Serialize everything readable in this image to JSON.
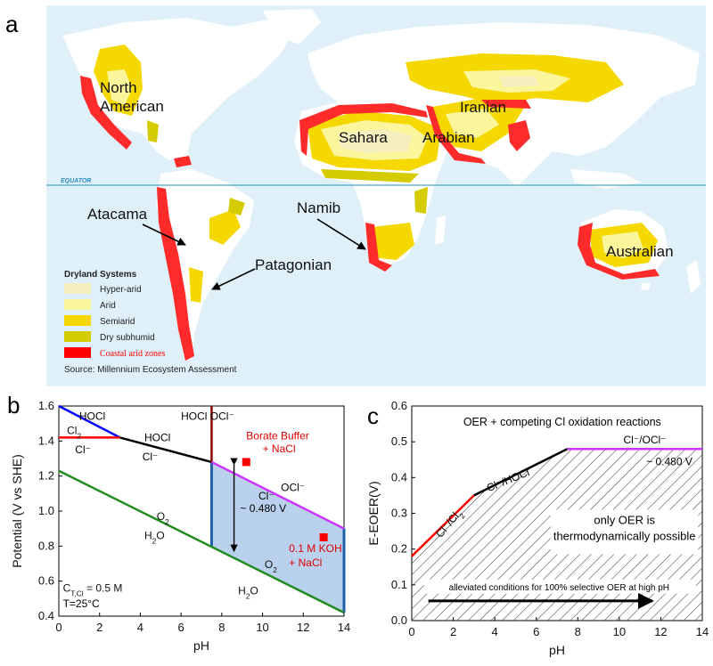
{
  "panel_labels": {
    "a": "a",
    "b": "b",
    "c": "c"
  },
  "map": {
    "equator_label": "EQUATOR",
    "regions": [
      "North American",
      "Sahara",
      "Arabian",
      "Iranian",
      "Atacama",
      "Namib",
      "Patagonian",
      "Australian"
    ],
    "legend": {
      "title": "Dryland Systems",
      "items": [
        {
          "label": "Hyper-arid",
          "color": "#f5efc0"
        },
        {
          "label": "Arid",
          "color": "#fbf59c"
        },
        {
          "label": "Semiarid",
          "color": "#f4d800"
        },
        {
          "label": "Dry subhumid",
          "color": "#d4cc00"
        },
        {
          "label": "Coastal arid zones",
          "color": "#ff0000"
        }
      ],
      "source": "Source: Millennium Ecosystem Assessment"
    },
    "colors": {
      "ocean": "#dff0f8",
      "land": "#ffffff",
      "coastal": "#ff2a2a"
    }
  },
  "chart_data": [
    {
      "type": "line",
      "xlabel": "pH",
      "ylabel": "Potential (V vs SHE)",
      "xlim": [
        0,
        14
      ],
      "ylim": [
        0.4,
        1.6
      ],
      "xticks": [
        0,
        2,
        4,
        6,
        8,
        10,
        12,
        14
      ],
      "yticks": [
        0.4,
        0.6,
        0.8,
        1.0,
        1.2,
        1.4,
        1.6
      ],
      "series": [
        {
          "color": "#0000ff",
          "x": [
            0,
            3.0
          ],
          "y": [
            1.6,
            1.42
          ]
        },
        {
          "color": "#ff0000",
          "x": [
            0,
            3.0
          ],
          "y": [
            1.42,
            1.42
          ]
        },
        {
          "color": "#000000",
          "x": [
            3.0,
            7.5
          ],
          "y": [
            1.42,
            1.28
          ]
        },
        {
          "color": "#8b0000",
          "x": [
            7.5,
            7.5
          ],
          "y": [
            1.28,
            1.6
          ]
        },
        {
          "color": "#cc33ff",
          "x": [
            7.5,
            14
          ],
          "y": [
            1.28,
            0.9
          ]
        },
        {
          "color": "#228b22",
          "x": [
            0,
            14
          ],
          "y": [
            1.23,
            0.42
          ]
        }
      ],
      "shaded_region": {
        "x": [
          7.5,
          14
        ],
        "upper": [
          1.28,
          0.9
        ],
        "lower": [
          0.795,
          0.42
        ],
        "color": "#a9c6e8"
      },
      "points": [
        {
          "x": 9.2,
          "y": 1.28,
          "color": "#ff0000"
        },
        {
          "x": 13.0,
          "y": 0.85,
          "color": "#ff0000"
        }
      ],
      "labels": {
        "hocl_top": "HOCl",
        "cl2": "Cl2",
        "cl_left": "Cl⁻",
        "hocl_mid": "HOCl",
        "cl_mid": "Cl⁻",
        "hocl_ocl": "HOCl OCl⁻",
        "ocl": "OCl⁻",
        "cl_right": "Cl⁻",
        "o2_left": "O2",
        "h2o_left": "H2O",
        "o2_right": "O2",
        "h2o_right": "H2O",
        "span": "~ 0.480 V",
        "borate_line1": "Borate Buffer",
        "borate_line2": "+ NaCl",
        "koh_line1": "0.1 M KOH",
        "koh_line2": "+ NaCl",
        "conc": "CT,Cl = 0.5 M",
        "temp": "T=25°C"
      }
    },
    {
      "type": "line",
      "xlabel": "pH",
      "ylabel": "E-EOER(V)",
      "xlim": [
        0,
        14
      ],
      "ylim": [
        0.0,
        0.6
      ],
      "xticks": [
        0,
        2,
        4,
        6,
        8,
        10,
        12,
        14
      ],
      "yticks": [
        0.0,
        0.1,
        0.2,
        0.3,
        0.4,
        0.5,
        0.6
      ],
      "series": [
        {
          "color": "#ff0000",
          "x": [
            0,
            3.0
          ],
          "y": [
            0.18,
            0.35
          ]
        },
        {
          "color": "#000000",
          "x": [
            3.0,
            7.5
          ],
          "y": [
            0.35,
            0.48
          ]
        },
        {
          "color": "#cc33ff",
          "x": [
            7.5,
            14
          ],
          "y": [
            0.48,
            0.48
          ]
        }
      ],
      "labels": {
        "title": "OER + competing Cl oxidation reactions",
        "cl_cl2": "Cl⁻/Cl2",
        "cl_hocl": "Cl⁻/HOCl",
        "cl_ocl": "Cl⁻/OCl⁻",
        "span": "~ 0.480 V",
        "box_line1": "only OER is",
        "box_line2": "thermodynamically possible",
        "arrow_text": "alleviated conditions for 100% selective OER at high pH"
      }
    }
  ]
}
